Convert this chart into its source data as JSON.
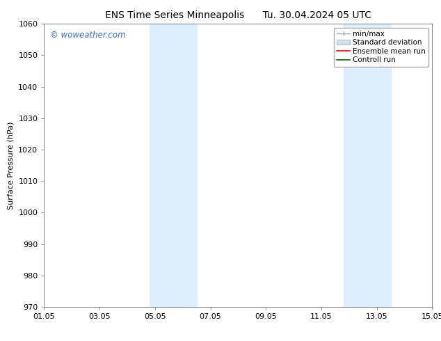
{
  "title": "ENS Time Series Minneapolis      Tu. 30.04.2024 05 UTC",
  "ylabel": "Surface Pressure (hPa)",
  "ylim": [
    970,
    1060
  ],
  "yticks": [
    970,
    980,
    990,
    1000,
    1010,
    1020,
    1030,
    1040,
    1050,
    1060
  ],
  "xlim_start": 0,
  "xlim_end": 14,
  "xtick_labels": [
    "01.05",
    "03.05",
    "05.05",
    "07.05",
    "09.05",
    "11.05",
    "13.05",
    "15.05"
  ],
  "xtick_positions": [
    0,
    2,
    4,
    6,
    8,
    10,
    12,
    14
  ],
  "shaded_regions": [
    {
      "x_start": 3.8,
      "x_end": 5.5,
      "color": "#ddeeff"
    },
    {
      "x_start": 10.8,
      "x_end": 12.5,
      "color": "#ddeeff"
    }
  ],
  "watermark_text": "© woweather.com",
  "watermark_color": "#3366cc",
  "background_color": "#ffffff",
  "plot_bg_color": "#ffffff",
  "legend_items": [
    {
      "label": "min/max",
      "color": "#aaaaaa",
      "style": "line_with_caps"
    },
    {
      "label": "Standard deviation",
      "color": "#cce0f0",
      "style": "box"
    },
    {
      "label": "Ensemble mean run",
      "color": "#ff0000",
      "style": "line"
    },
    {
      "label": "Controll run",
      "color": "#006600",
      "style": "line"
    }
  ],
  "title_fontsize": 10,
  "axis_label_fontsize": 8,
  "tick_fontsize": 8,
  "legend_fontsize": 7.5
}
